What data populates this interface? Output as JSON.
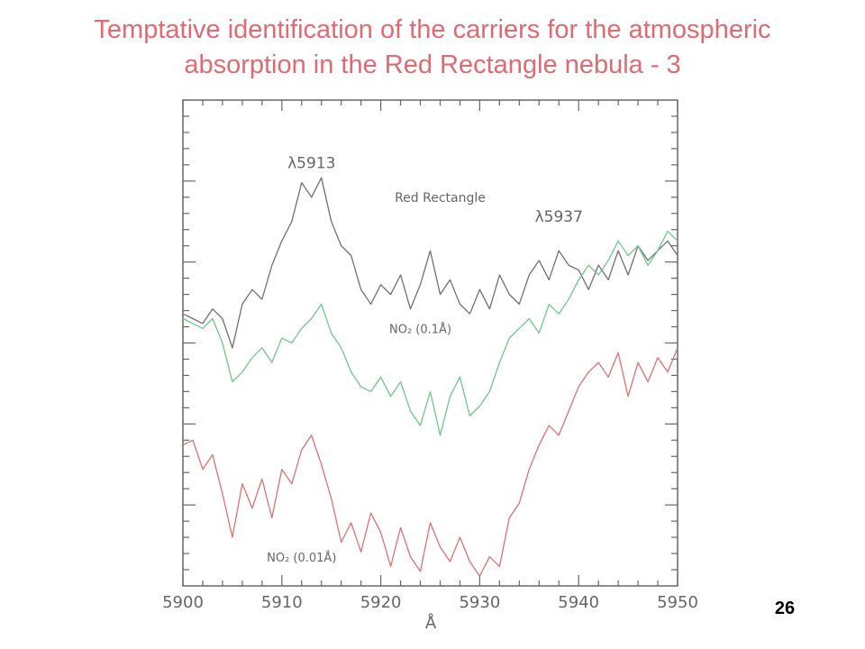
{
  "slide": {
    "title_line1": "Temptative  identification of the  carriers for the atmospheric",
    "title_line2": "absorption in the Red Rectangle nebula  - 3",
    "title_color": "#e06a72",
    "page_number": "26"
  },
  "chart_data": {
    "type": "line",
    "title": "",
    "xlabel": "Å",
    "ylabel": "",
    "xlim": [
      5900,
      5950
    ],
    "ylim": [
      0,
      1
    ],
    "grid": false,
    "x_ticks": [
      "5900",
      "5910",
      "5920",
      "5930",
      "5940",
      "5950"
    ],
    "annotations": [
      {
        "text": "λ5913",
        "x": 5913,
        "y": 0.86
      },
      {
        "text": "Red Rectangle",
        "x": 5926,
        "y": 0.79
      },
      {
        "text": "λ5937",
        "x": 5938,
        "y": 0.75
      },
      {
        "text": "NO₂ (0.1Å)",
        "x": 5924,
        "y": 0.52
      },
      {
        "text": "NO₂ (0.01Å)",
        "x": 5912,
        "y": 0.05
      }
    ],
    "series": [
      {
        "name": "Red Rectangle",
        "color": "#707070",
        "x": [
          5900,
          5901,
          5902,
          5903,
          5904,
          5905,
          5906,
          5907,
          5908,
          5909,
          5910,
          5911,
          5912,
          5913,
          5914,
          5915,
          5916,
          5917,
          5918,
          5919,
          5920,
          5921,
          5922,
          5923,
          5924,
          5925,
          5926,
          5927,
          5928,
          5929,
          5930,
          5931,
          5932,
          5933,
          5934,
          5935,
          5936,
          5937,
          5938,
          5939,
          5940,
          5941,
          5942,
          5943,
          5944,
          5945,
          5946,
          5947,
          5948,
          5949,
          5950
        ],
        "values": [
          0.56,
          0.55,
          0.54,
          0.57,
          0.55,
          0.49,
          0.58,
          0.61,
          0.59,
          0.66,
          0.71,
          0.75,
          0.83,
          0.8,
          0.84,
          0.75,
          0.7,
          0.68,
          0.61,
          0.58,
          0.62,
          0.6,
          0.64,
          0.57,
          0.62,
          0.69,
          0.6,
          0.63,
          0.58,
          0.56,
          0.61,
          0.57,
          0.64,
          0.6,
          0.58,
          0.64,
          0.67,
          0.63,
          0.69,
          0.66,
          0.65,
          0.61,
          0.66,
          0.63,
          0.69,
          0.64,
          0.7,
          0.67,
          0.69,
          0.71,
          0.68
        ]
      },
      {
        "name": "NO₂ (0.1Å)",
        "color": "#6fc78a",
        "x": [
          5900,
          5901,
          5902,
          5903,
          5904,
          5905,
          5906,
          5907,
          5908,
          5909,
          5910,
          5911,
          5912,
          5913,
          5914,
          5915,
          5916,
          5917,
          5918,
          5919,
          5920,
          5921,
          5922,
          5923,
          5924,
          5925,
          5926,
          5927,
          5928,
          5929,
          5930,
          5931,
          5932,
          5933,
          5934,
          5935,
          5936,
          5937,
          5938,
          5939,
          5940,
          5941,
          5942,
          5943,
          5944,
          5945,
          5946,
          5947,
          5948,
          5949,
          5950
        ],
        "values": [
          0.55,
          0.54,
          0.53,
          0.55,
          0.5,
          0.42,
          0.44,
          0.47,
          0.49,
          0.46,
          0.51,
          0.5,
          0.53,
          0.55,
          0.58,
          0.52,
          0.49,
          0.44,
          0.41,
          0.4,
          0.43,
          0.39,
          0.42,
          0.36,
          0.33,
          0.4,
          0.31,
          0.39,
          0.43,
          0.35,
          0.37,
          0.4,
          0.46,
          0.51,
          0.53,
          0.55,
          0.52,
          0.58,
          0.56,
          0.59,
          0.63,
          0.66,
          0.64,
          0.67,
          0.71,
          0.68,
          0.7,
          0.66,
          0.69,
          0.73,
          0.71
        ]
      },
      {
        "name": "NO₂ (0.01Å)",
        "color": "#e07070",
        "x": [
          5900,
          5901,
          5902,
          5903,
          5904,
          5905,
          5906,
          5907,
          5908,
          5909,
          5910,
          5911,
          5912,
          5913,
          5914,
          5915,
          5916,
          5917,
          5918,
          5919,
          5920,
          5921,
          5922,
          5923,
          5924,
          5925,
          5926,
          5927,
          5928,
          5929,
          5930,
          5931,
          5932,
          5933,
          5934,
          5935,
          5936,
          5937,
          5938,
          5939,
          5940,
          5941,
          5942,
          5943,
          5944,
          5945,
          5946,
          5947,
          5948,
          5949,
          5950
        ],
        "values": [
          0.29,
          0.3,
          0.24,
          0.27,
          0.19,
          0.1,
          0.21,
          0.16,
          0.22,
          0.14,
          0.24,
          0.21,
          0.28,
          0.31,
          0.25,
          0.18,
          0.09,
          0.13,
          0.07,
          0.15,
          0.11,
          0.04,
          0.12,
          0.06,
          0.03,
          0.13,
          0.08,
          0.05,
          0.1,
          0.05,
          0.02,
          0.06,
          0.04,
          0.14,
          0.17,
          0.24,
          0.29,
          0.33,
          0.31,
          0.36,
          0.41,
          0.44,
          0.46,
          0.43,
          0.48,
          0.39,
          0.46,
          0.42,
          0.47,
          0.44,
          0.49
        ]
      }
    ]
  }
}
